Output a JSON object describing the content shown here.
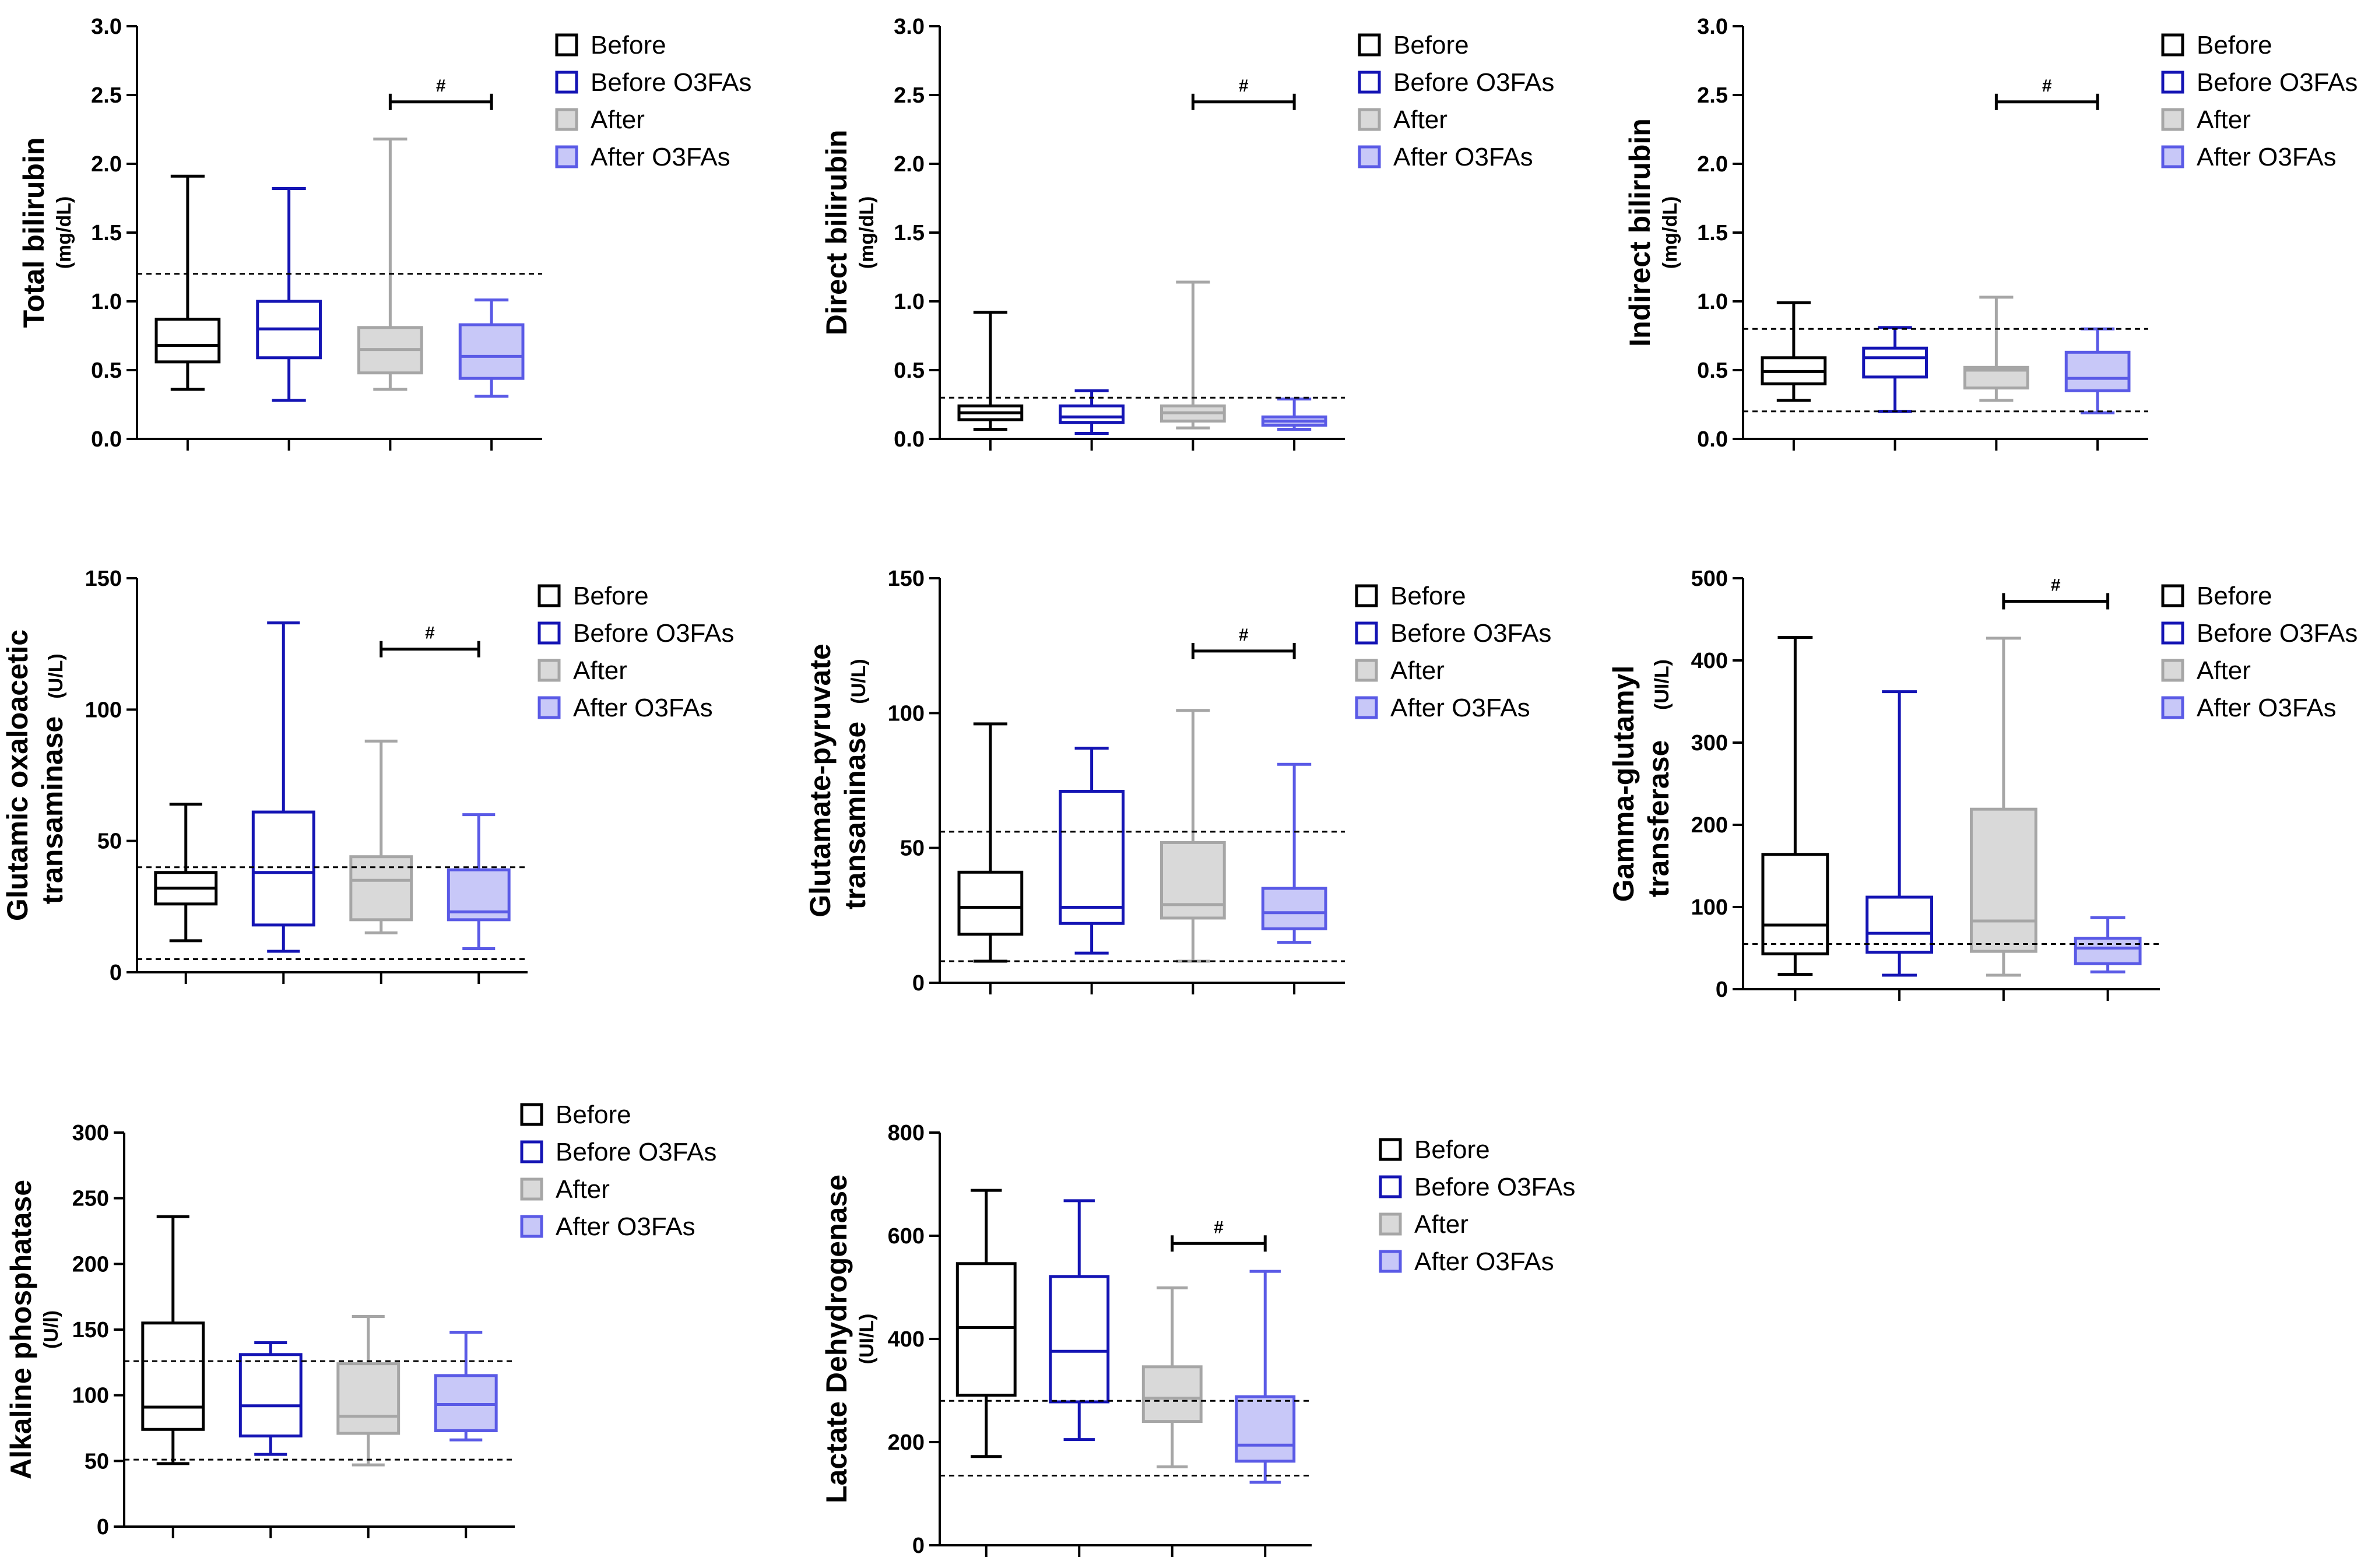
{
  "chart_data": [
    {
      "type": "box",
      "ylabel": "Total bilirubin",
      "yunit": "(mg/dL)",
      "ylim": [
        0,
        3.0
      ],
      "yticks": [
        "0.0",
        "0.5",
        "1.0",
        "1.5",
        "2.0",
        "2.5",
        "3.0"
      ],
      "reference_lines": [
        1.2
      ],
      "significance": {
        "from": 2,
        "to": 3,
        "label": "#",
        "y": 2.45
      },
      "legend": [
        "Before",
        "Before O3FAs",
        "After",
        "After O3FAs"
      ],
      "series": [
        {
          "name": "Before",
          "min": 0.36,
          "q1": 0.56,
          "median": 0.68,
          "q3": 0.87,
          "max": 1.91
        },
        {
          "name": "Before O3FAs",
          "min": 0.28,
          "q1": 0.59,
          "median": 0.8,
          "q3": 1.0,
          "max": 1.82
        },
        {
          "name": "After",
          "min": 0.36,
          "q1": 0.48,
          "median": 0.65,
          "q3": 0.81,
          "max": 2.18
        },
        {
          "name": "After O3FAs",
          "min": 0.31,
          "q1": 0.44,
          "median": 0.6,
          "q3": 0.83,
          "max": 1.01
        }
      ]
    },
    {
      "type": "box",
      "ylabel": "Direct bilirubin",
      "yunit": "(mg/dL)",
      "ylim": [
        0,
        3.0
      ],
      "yticks": [
        "0.0",
        "0.5",
        "1.0",
        "1.5",
        "2.0",
        "2.5",
        "3.0"
      ],
      "reference_lines": [
        0.3
      ],
      "significance": {
        "from": 2,
        "to": 3,
        "label": "#",
        "y": 2.45
      },
      "legend": [
        "Before",
        "Before O3FAs",
        "After",
        "After O3FAs"
      ],
      "series": [
        {
          "name": "Before",
          "min": 0.07,
          "q1": 0.14,
          "median": 0.19,
          "q3": 0.24,
          "max": 0.92
        },
        {
          "name": "Before O3FAs",
          "min": 0.04,
          "q1": 0.12,
          "median": 0.16,
          "q3": 0.24,
          "max": 0.35
        },
        {
          "name": "After",
          "min": 0.08,
          "q1": 0.13,
          "median": 0.19,
          "q3": 0.24,
          "max": 1.14
        },
        {
          "name": "After O3FAs",
          "min": 0.07,
          "q1": 0.1,
          "median": 0.13,
          "q3": 0.16,
          "max": 0.29
        }
      ]
    },
    {
      "type": "box",
      "ylabel": "Indirect bilirubin",
      "yunit": "(mg/dL)",
      "ylim": [
        0,
        3.0
      ],
      "yticks": [
        "0.0",
        "0.5",
        "1.0",
        "1.5",
        "2.0",
        "2.5",
        "3.0"
      ],
      "reference_lines": [
        0.2,
        0.8
      ],
      "significance": {
        "from": 2,
        "to": 3,
        "label": "#",
        "y": 2.45
      },
      "legend": [
        "Before",
        "Before O3FAs",
        "After",
        "After O3FAs"
      ],
      "series": [
        {
          "name": "Before",
          "min": 0.28,
          "q1": 0.4,
          "median": 0.49,
          "q3": 0.59,
          "max": 0.99
        },
        {
          "name": "Before O3FAs",
          "min": 0.2,
          "q1": 0.45,
          "median": 0.59,
          "q3": 0.66,
          "max": 0.81
        },
        {
          "name": "After",
          "min": 0.28,
          "q1": 0.37,
          "median": 0.5,
          "q3": 0.52,
          "max": 1.03
        },
        {
          "name": "After O3FAs",
          "min": 0.19,
          "q1": 0.35,
          "median": 0.44,
          "q3": 0.63,
          "max": 0.8
        }
      ]
    },
    {
      "type": "box",
      "ylabel": "Glutamic oxaloacetic",
      "ylabel2": "transaminase",
      "yunit": "(U/L)",
      "ylim": [
        0,
        150
      ],
      "yticks": [
        "0",
        "50",
        "100",
        "150"
      ],
      "reference_lines": [
        5,
        40
      ],
      "significance": {
        "from": 2,
        "to": 3,
        "label": "#",
        "y": 123
      },
      "legend": [
        "Before",
        "Before O3FAs",
        "After",
        "After O3FAs"
      ],
      "series": [
        {
          "name": "Before",
          "min": 12,
          "q1": 26,
          "median": 32,
          "q3": 38,
          "max": 64
        },
        {
          "name": "Before O3FAs",
          "min": 8,
          "q1": 18,
          "median": 38,
          "q3": 61,
          "max": 133
        },
        {
          "name": "After",
          "min": 15,
          "q1": 20,
          "median": 35,
          "q3": 44,
          "max": 88
        },
        {
          "name": "After O3FAs",
          "min": 9,
          "q1": 20,
          "median": 23,
          "q3": 39,
          "max": 60
        }
      ]
    },
    {
      "type": "box",
      "ylabel": "Glutamate-pyruvate",
      "ylabel2": "transaminase",
      "yunit": "(U/L)",
      "ylim": [
        0,
        150
      ],
      "yticks": [
        "0",
        "50",
        "100",
        "150"
      ],
      "reference_lines": [
        8,
        56
      ],
      "significance": {
        "from": 2,
        "to": 3,
        "label": "#",
        "y": 123
      },
      "legend": [
        "Before",
        "Before O3FAs",
        "After",
        "After O3FAs"
      ],
      "series": [
        {
          "name": "Before",
          "min": 8,
          "q1": 18,
          "median": 28,
          "q3": 41,
          "max": 96
        },
        {
          "name": "Before O3FAs",
          "min": 11,
          "q1": 22,
          "median": 28,
          "q3": 71,
          "max": 87
        },
        {
          "name": "After",
          "min": 8,
          "q1": 24,
          "median": 29,
          "q3": 52,
          "max": 101
        },
        {
          "name": "After O3FAs",
          "min": 15,
          "q1": 20,
          "median": 26,
          "q3": 35,
          "max": 81
        }
      ]
    },
    {
      "type": "box",
      "ylabel": "Gamma-glutamyl",
      "ylabel2": "transferase",
      "yunit": "(UI/L)",
      "ylim": [
        0,
        500
      ],
      "yticks": [
        "0",
        "100",
        "200",
        "300",
        "400",
        "500"
      ],
      "reference_lines": [
        55
      ],
      "significance": {
        "from": 2,
        "to": 3,
        "label": "#",
        "y": 472
      },
      "legend": [
        "Before",
        "Before O3FAs",
        "After",
        "After O3FAs"
      ],
      "series": [
        {
          "name": "Before",
          "min": 18,
          "q1": 43,
          "median": 78,
          "q3": 164,
          "max": 428
        },
        {
          "name": "Before O3FAs",
          "min": 17,
          "q1": 45,
          "median": 68,
          "q3": 112,
          "max": 362
        },
        {
          "name": "After",
          "min": 17,
          "q1": 46,
          "median": 83,
          "q3": 219,
          "max": 427
        },
        {
          "name": "After O3FAs",
          "min": 21,
          "q1": 31,
          "median": 50,
          "q3": 62,
          "max": 87
        }
      ]
    },
    {
      "type": "box",
      "ylabel": "Alkaline phosphatase",
      "yunit": "(U/l)",
      "ylim": [
        0,
        300
      ],
      "yticks": [
        "0",
        "50",
        "100",
        "150",
        "200",
        "250",
        "300"
      ],
      "reference_lines": [
        51,
        126
      ],
      "legend": [
        "Before",
        "Before O3FAs",
        "After",
        "After O3FAs"
      ],
      "series": [
        {
          "name": "Before",
          "min": 48,
          "q1": 74,
          "median": 91,
          "q3": 155,
          "max": 236
        },
        {
          "name": "Before O3FAs",
          "min": 55,
          "q1": 69,
          "median": 92,
          "q3": 131,
          "max": 140
        },
        {
          "name": "After",
          "min": 47,
          "q1": 71,
          "median": 84,
          "q3": 124,
          "max": 160
        },
        {
          "name": "After O3FAs",
          "min": 66,
          "q1": 73,
          "median": 93,
          "q3": 115,
          "max": 148
        }
      ]
    },
    {
      "type": "box",
      "ylabel": "Lactate Dehydrogenase",
      "yunit": "(UI/L)",
      "ylim": [
        0,
        800
      ],
      "yticks": [
        "0",
        "200",
        "400",
        "600",
        "800"
      ],
      "reference_lines": [
        135,
        280
      ],
      "significance": {
        "from": 2,
        "to": 3,
        "label": "#",
        "y": 585
      },
      "legend": [
        "Before",
        "Before O3FAs",
        "After",
        "After O3FAs"
      ],
      "series": [
        {
          "name": "Before",
          "min": 172,
          "q1": 291,
          "median": 422,
          "q3": 546,
          "max": 688
        },
        {
          "name": "Before O3FAs",
          "min": 205,
          "q1": 278,
          "median": 376,
          "q3": 521,
          "max": 668
        },
        {
          "name": "After",
          "min": 152,
          "q1": 240,
          "median": 285,
          "q3": 346,
          "max": 499
        },
        {
          "name": "After O3FAs",
          "min": 122,
          "q1": 163,
          "median": 194,
          "q3": 288,
          "max": 531
        }
      ]
    }
  ],
  "colors": {
    "before": {
      "stroke": "#000000",
      "fill": "#ffffff"
    },
    "before_o3fas": {
      "stroke": "#1414b4",
      "fill": "#ffffff"
    },
    "after": {
      "stroke": "#a6a6a6",
      "fill": "#d9d9d9"
    },
    "after_o3fas": {
      "stroke": "#5a5ae6",
      "fill": "#c8c8f8"
    }
  }
}
